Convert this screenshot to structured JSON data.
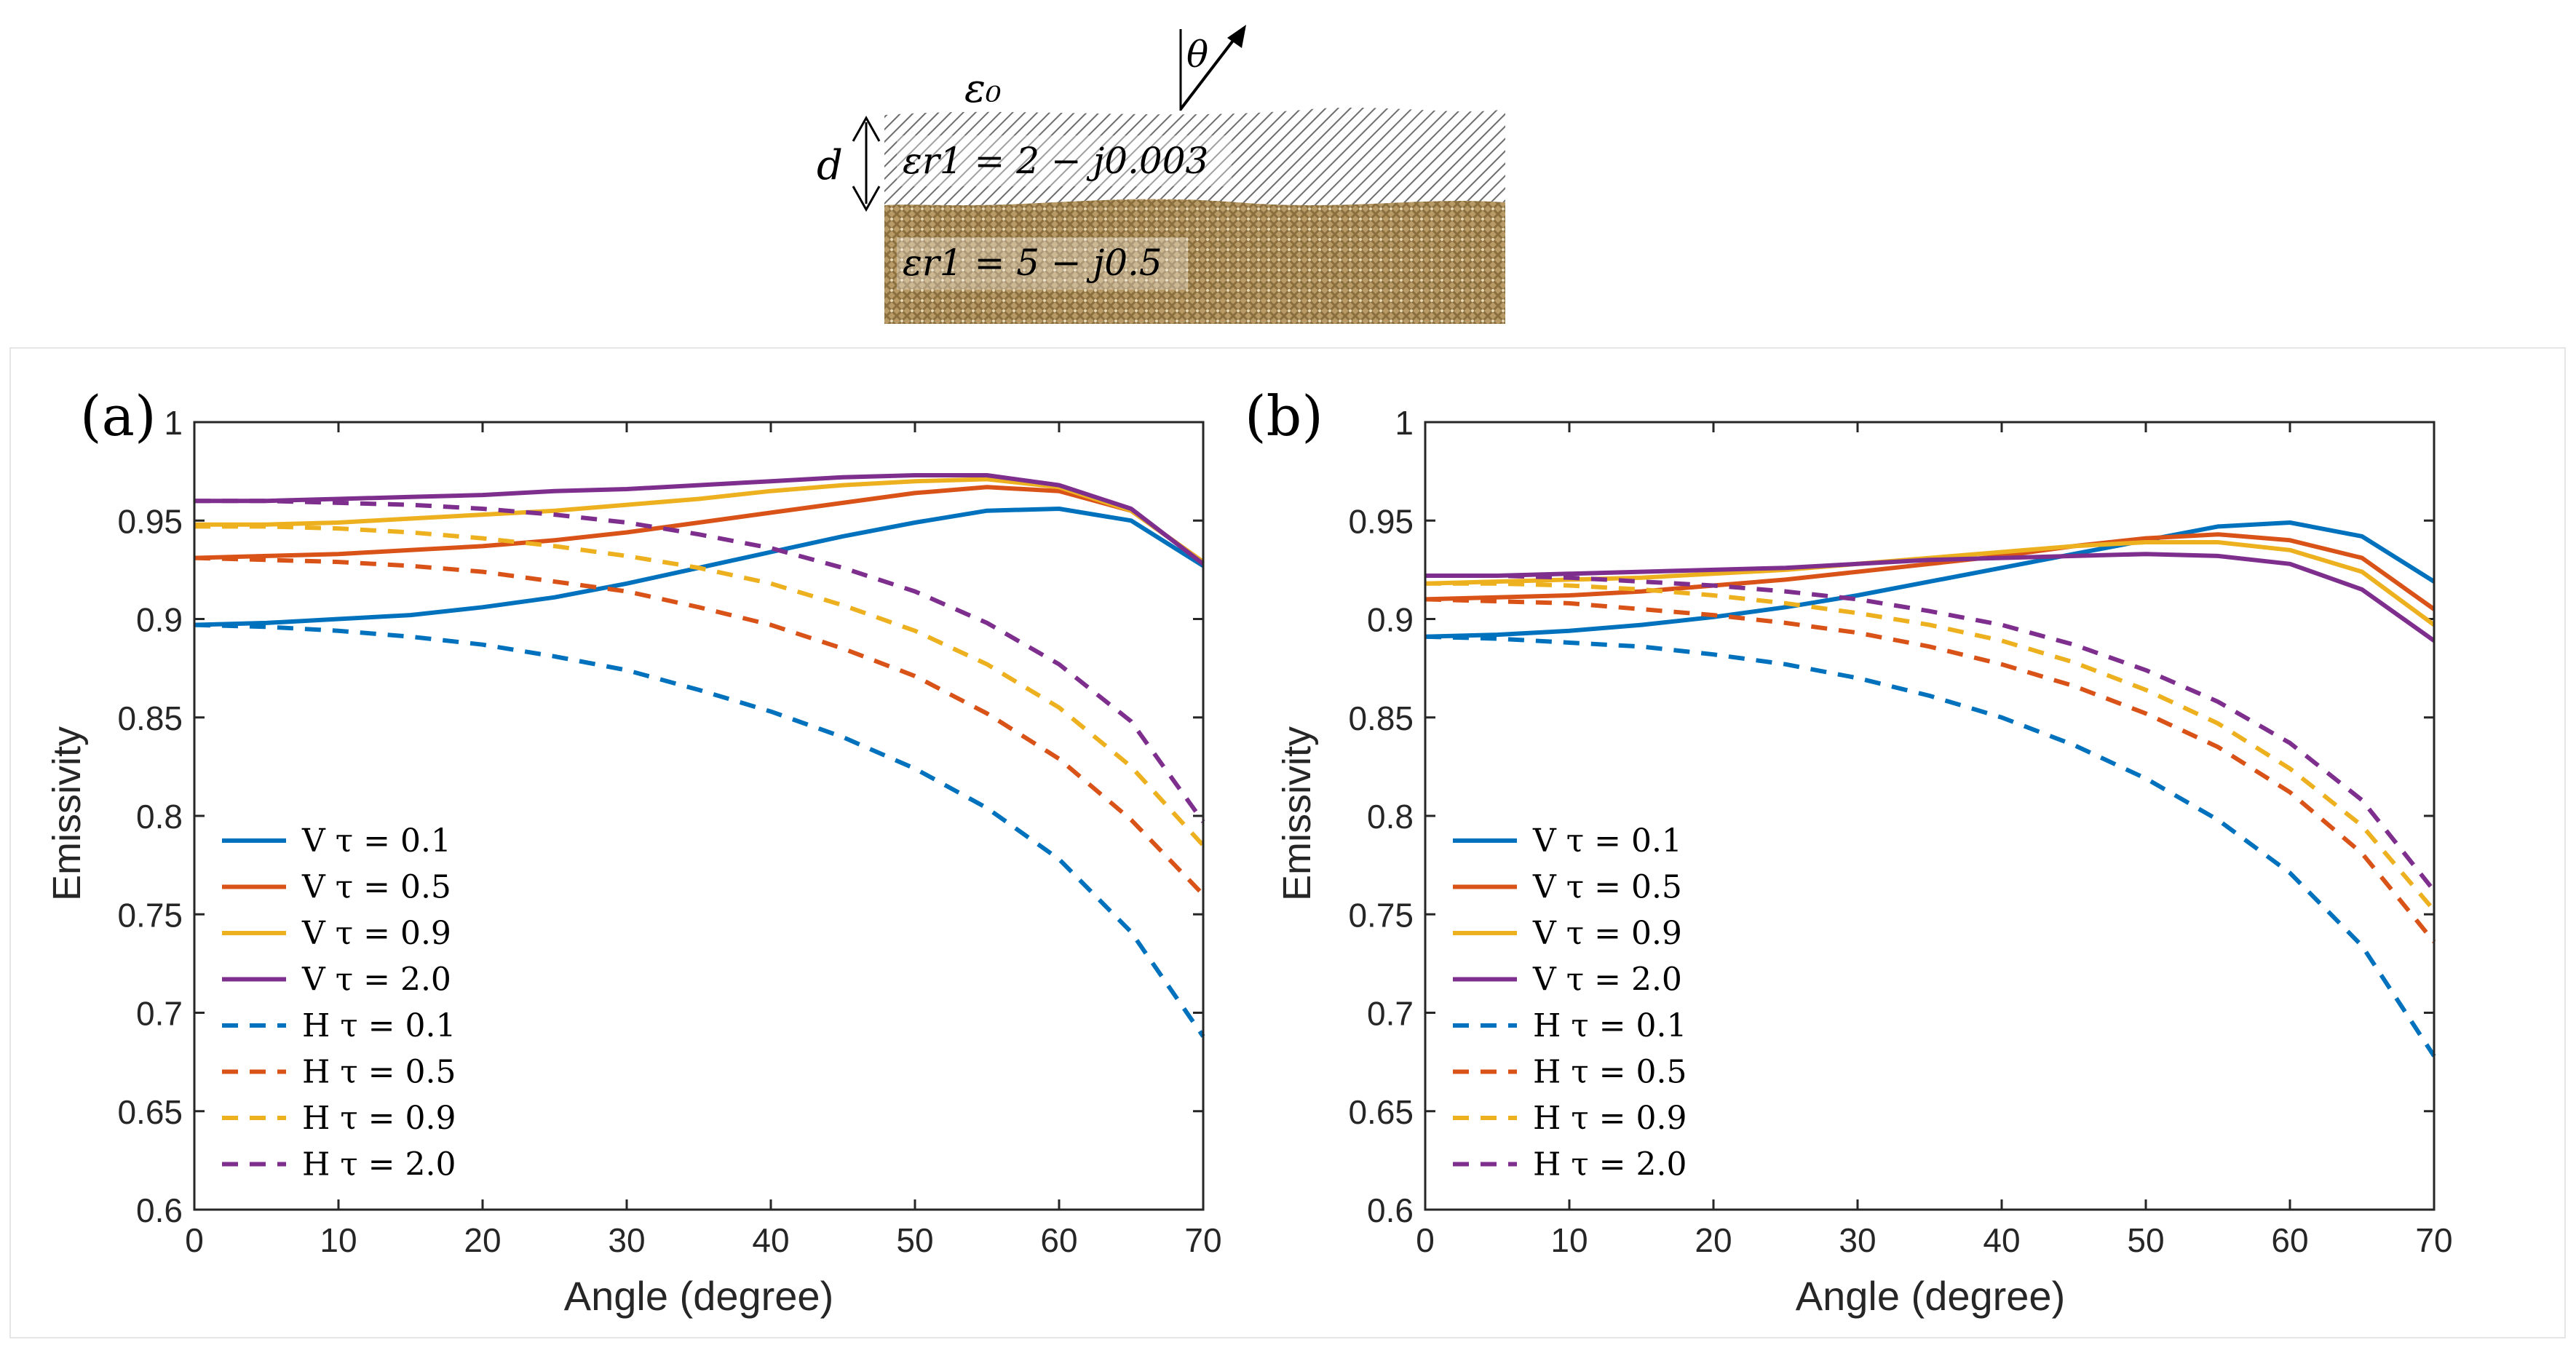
{
  "diagram": {
    "eps0_label": "ε₀",
    "theta_label": "θ",
    "d_label": "d",
    "layer1_label": "εr1 = 2 − j0.003",
    "layer2_label": "εr1 = 5 − j0.5",
    "layer1_color": "#8a8a8a",
    "layer2_color": "#a78b5b"
  },
  "colors": {
    "blue": "#0072BD",
    "orange": "#D95319",
    "yellow": "#EDB120",
    "purple": "#7E2F8E"
  },
  "chart_data": [
    {
      "type": "line",
      "panel_label": "(a)",
      "xlabel": "Angle (degree)",
      "ylabel": "Emissivity",
      "xlim": [
        0,
        70
      ],
      "ylim": [
        0.6,
        1
      ],
      "x_ticks": [
        "0",
        "10",
        "20",
        "30",
        "40",
        "50",
        "60",
        "70"
      ],
      "y_ticks": [
        "0.6",
        "0.65",
        "0.7",
        "0.75",
        "0.8",
        "0.85",
        "0.9",
        "0.95",
        "1"
      ],
      "legend_position": "bottom-left",
      "x": [
        0,
        5,
        10,
        15,
        20,
        25,
        30,
        35,
        40,
        45,
        50,
        55,
        60,
        65,
        70
      ],
      "series": [
        {
          "name": "V τ = 0.1",
          "color": "blue",
          "dash": false,
          "values": [
            0.897,
            0.898,
            0.9,
            0.902,
            0.906,
            0.911,
            0.918,
            0.926,
            0.934,
            0.942,
            0.949,
            0.955,
            0.956,
            0.95,
            0.927
          ]
        },
        {
          "name": "V τ = 0.5",
          "color": "orange",
          "dash": false,
          "values": [
            0.931,
            0.932,
            0.933,
            0.935,
            0.937,
            0.94,
            0.944,
            0.949,
            0.954,
            0.959,
            0.964,
            0.967,
            0.965,
            0.955,
            0.929
          ]
        },
        {
          "name": "V τ = 0.9",
          "color": "yellow",
          "dash": false,
          "values": [
            0.948,
            0.948,
            0.949,
            0.951,
            0.953,
            0.955,
            0.958,
            0.961,
            0.965,
            0.968,
            0.97,
            0.971,
            0.967,
            0.955,
            0.929
          ]
        },
        {
          "name": "V τ = 2.0",
          "color": "purple",
          "dash": false,
          "values": [
            0.96,
            0.96,
            0.961,
            0.962,
            0.963,
            0.965,
            0.966,
            0.968,
            0.97,
            0.972,
            0.973,
            0.973,
            0.968,
            0.956,
            0.928
          ]
        },
        {
          "name": "H τ = 0.1",
          "color": "blue",
          "dash": true,
          "values": [
            0.897,
            0.896,
            0.894,
            0.891,
            0.887,
            0.881,
            0.874,
            0.864,
            0.853,
            0.84,
            0.824,
            0.804,
            0.778,
            0.741,
            0.688
          ]
        },
        {
          "name": "H τ = 0.5",
          "color": "orange",
          "dash": true,
          "values": [
            0.931,
            0.93,
            0.929,
            0.927,
            0.924,
            0.919,
            0.914,
            0.906,
            0.897,
            0.885,
            0.871,
            0.852,
            0.829,
            0.798,
            0.76
          ]
        },
        {
          "name": "H τ = 0.9",
          "color": "yellow",
          "dash": true,
          "values": [
            0.947,
            0.947,
            0.946,
            0.944,
            0.941,
            0.937,
            0.932,
            0.926,
            0.918,
            0.907,
            0.894,
            0.877,
            0.855,
            0.825,
            0.785
          ]
        },
        {
          "name": "H τ = 2.0",
          "color": "purple",
          "dash": true,
          "values": [
            0.96,
            0.96,
            0.959,
            0.958,
            0.956,
            0.953,
            0.949,
            0.943,
            0.936,
            0.926,
            0.914,
            0.898,
            0.877,
            0.848,
            0.797
          ]
        }
      ]
    },
    {
      "type": "line",
      "panel_label": "(b)",
      "xlabel": "Angle (degree)",
      "ylabel": "Emissivity",
      "xlim": [
        0,
        70
      ],
      "ylim": [
        0.6,
        1
      ],
      "x_ticks": [
        "0",
        "10",
        "20",
        "30",
        "40",
        "50",
        "60",
        "70"
      ],
      "y_ticks": [
        "0.6",
        "0.65",
        "0.7",
        "0.75",
        "0.8",
        "0.85",
        "0.9",
        "0.95",
        "1"
      ],
      "legend_position": "bottom-left",
      "x": [
        0,
        5,
        10,
        15,
        20,
        25,
        30,
        35,
        40,
        45,
        50,
        55,
        60,
        65,
        70
      ],
      "series": [
        {
          "name": "V τ = 0.1",
          "color": "blue",
          "dash": false,
          "values": [
            0.891,
            0.892,
            0.894,
            0.897,
            0.901,
            0.906,
            0.912,
            0.919,
            0.926,
            0.933,
            0.94,
            0.947,
            0.949,
            0.942,
            0.919
          ]
        },
        {
          "name": "V τ = 0.5",
          "color": "orange",
          "dash": false,
          "values": [
            0.91,
            0.911,
            0.912,
            0.914,
            0.917,
            0.92,
            0.924,
            0.928,
            0.932,
            0.937,
            0.941,
            0.943,
            0.94,
            0.931,
            0.905
          ]
        },
        {
          "name": "V τ = 0.9",
          "color": "yellow",
          "dash": false,
          "values": [
            0.918,
            0.919,
            0.92,
            0.921,
            0.923,
            0.925,
            0.928,
            0.931,
            0.934,
            0.937,
            0.939,
            0.939,
            0.935,
            0.924,
            0.897
          ]
        },
        {
          "name": "V τ = 2.0",
          "color": "purple",
          "dash": false,
          "values": [
            0.922,
            0.922,
            0.923,
            0.924,
            0.925,
            0.926,
            0.928,
            0.93,
            0.931,
            0.932,
            0.933,
            0.932,
            0.928,
            0.915,
            0.889
          ]
        },
        {
          "name": "H τ = 0.1",
          "color": "blue",
          "dash": true,
          "values": [
            0.891,
            0.89,
            0.888,
            0.886,
            0.882,
            0.877,
            0.87,
            0.861,
            0.85,
            0.836,
            0.819,
            0.798,
            0.771,
            0.734,
            0.678
          ]
        },
        {
          "name": "H τ = 0.5",
          "color": "orange",
          "dash": true,
          "values": [
            0.91,
            0.909,
            0.908,
            0.905,
            0.902,
            0.898,
            0.893,
            0.886,
            0.877,
            0.866,
            0.852,
            0.835,
            0.812,
            0.781,
            0.736
          ]
        },
        {
          "name": "H τ = 0.9",
          "color": "yellow",
          "dash": true,
          "values": [
            0.918,
            0.918,
            0.917,
            0.915,
            0.912,
            0.908,
            0.903,
            0.897,
            0.889,
            0.878,
            0.864,
            0.847,
            0.824,
            0.795,
            0.752
          ]
        },
        {
          "name": "H τ = 2.0",
          "color": "purple",
          "dash": true,
          "values": [
            0.922,
            0.922,
            0.921,
            0.919,
            0.917,
            0.914,
            0.91,
            0.904,
            0.897,
            0.887,
            0.874,
            0.858,
            0.837,
            0.808,
            0.762
          ]
        }
      ]
    }
  ]
}
